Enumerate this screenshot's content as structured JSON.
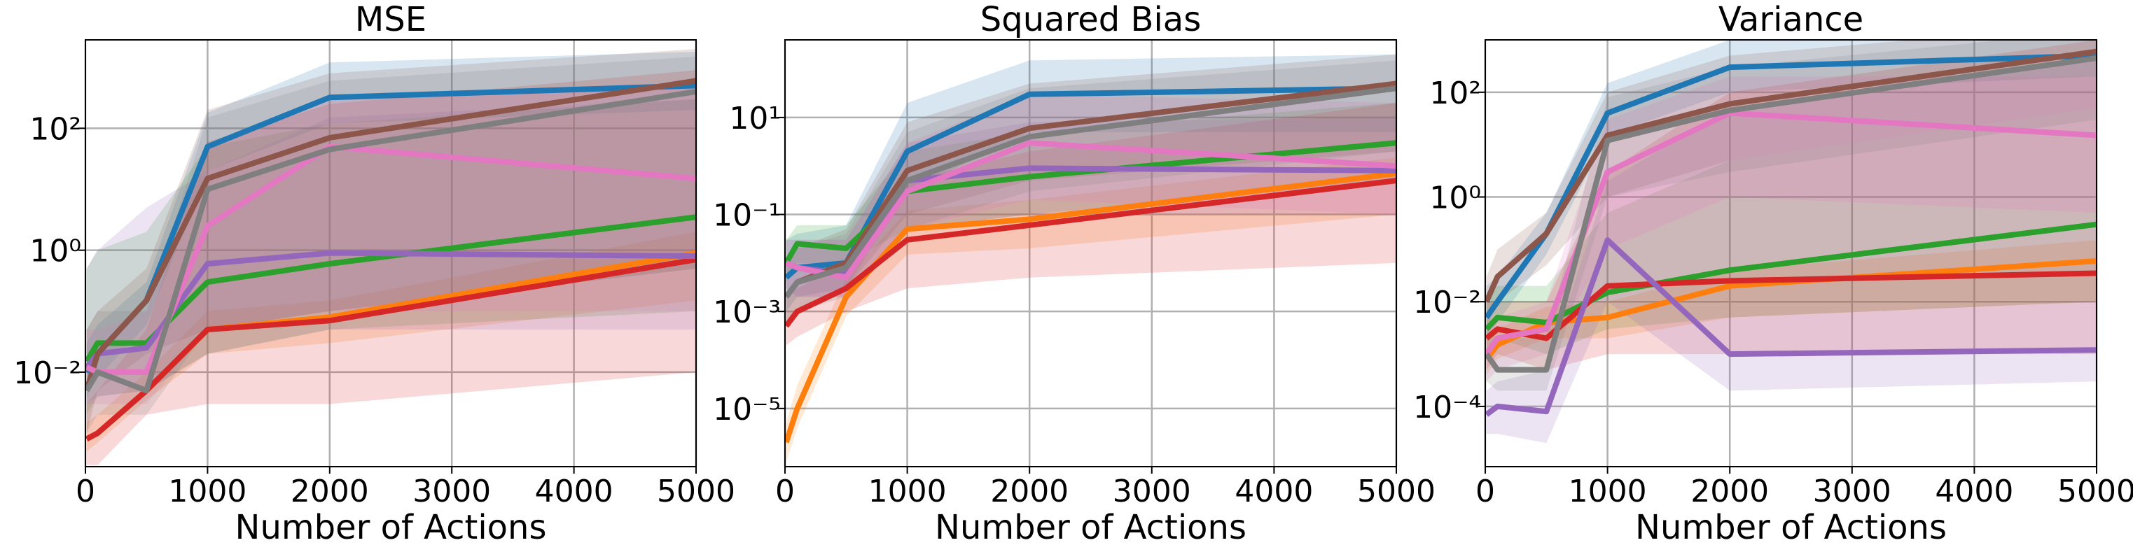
{
  "chart_data": [
    {
      "type": "line",
      "title": "MSE",
      "xlabel": "Number of Actions",
      "ylabel": "",
      "x": [
        10,
        100,
        500,
        1000,
        2000,
        5000
      ],
      "xlim": [
        0,
        5000
      ],
      "xticks": [
        0,
        1000,
        2000,
        3000,
        4000,
        5000
      ],
      "ylog": true,
      "ylim_log10": [
        -3.55,
        3.45
      ],
      "yticks_log10": [
        -2,
        0,
        2
      ],
      "grid": true,
      "series": [
        {
          "color": "#1f77b4",
          "values": [
            0.01,
            0.02,
            0.15,
            50,
            320,
            500
          ],
          "band_low": [
            0.004,
            0.008,
            0.06,
            20,
            120,
            200
          ],
          "band_high": [
            0.03,
            0.06,
            0.3,
            180,
            1200,
            1800
          ]
        },
        {
          "color": "#ff7f0e",
          "values": [
            0.0008,
            0.001,
            0.005,
            0.05,
            0.08,
            0.9
          ],
          "band_low": [
            0.0005,
            0.0007,
            0.0035,
            0.02,
            0.03,
            0.15
          ],
          "band_high": [
            0.0015,
            0.002,
            0.01,
            0.1,
            0.15,
            2.0
          ]
        },
        {
          "color": "#2ca02c",
          "values": [
            0.015,
            0.03,
            0.03,
            0.3,
            0.6,
            3.5
          ],
          "band_low": [
            0.002,
            0.004,
            0.005,
            0.02,
            0.05,
            0.1
          ],
          "band_high": [
            0.5,
            1,
            2,
            50,
            120,
            300
          ]
        },
        {
          "color": "#d62728",
          "values": [
            0.0008,
            0.001,
            0.005,
            0.05,
            0.07,
            0.7
          ],
          "band_low": [
            0.0003,
            0.0003,
            0.002,
            0.003,
            0.003,
            0.01
          ],
          "band_high": [
            0.003,
            0.005,
            0.05,
            60,
            250,
            900
          ]
        },
        {
          "color": "#9467bd",
          "values": [
            0.012,
            0.02,
            0.025,
            0.6,
            0.9,
            0.8
          ],
          "band_low": [
            0.003,
            0.004,
            0.005,
            0.02,
            0.05,
            0.05
          ],
          "band_high": [
            0.5,
            1,
            5,
            20,
            150,
            300
          ]
        },
        {
          "color": "#8c564b",
          "values": [
            0.005,
            0.02,
            0.15,
            15,
            70,
            600
          ],
          "band_low": [
            0.001,
            0.005,
            0.02,
            0.05,
            0.1,
            0.5
          ],
          "band_high": [
            0.05,
            0.1,
            0.5,
            200,
            800,
            2000
          ]
        },
        {
          "color": "#e377c2",
          "values": [
            0.012,
            0.01,
            0.01,
            2.5,
            50,
            15
          ],
          "band_low": [
            0.003,
            0.003,
            0.003,
            0.05,
            0.1,
            0.1
          ],
          "band_high": [
            0.05,
            0.05,
            0.1,
            50,
            300,
            500
          ]
        },
        {
          "color": "#7f7f7f",
          "values": [
            0.005,
            0.01,
            0.005,
            10,
            45,
            400
          ],
          "band_low": [
            0.001,
            0.002,
            0.002,
            0.05,
            0.1,
            0.5
          ],
          "band_high": [
            0.05,
            0.1,
            0.1,
            150,
            600,
            1500
          ]
        }
      ]
    },
    {
      "type": "line",
      "title": "Squared Bias",
      "xlabel": "Number of Actions",
      "ylabel": "",
      "x": [
        10,
        100,
        500,
        1000,
        2000,
        5000
      ],
      "xlim": [
        0,
        5000
      ],
      "xticks": [
        0,
        1000,
        2000,
        3000,
        4000,
        5000
      ],
      "ylog": true,
      "ylim_log10": [
        -6.2,
        2.6
      ],
      "yticks_log10": [
        -5,
        -3,
        -1,
        1
      ],
      "grid": true,
      "series": [
        {
          "color": "#1f77b4",
          "values": [
            0.005,
            0.008,
            0.01,
            2,
            30,
            40
          ],
          "band_low": [
            0.001,
            0.002,
            0.003,
            0.3,
            5,
            5
          ],
          "band_high": [
            0.03,
            0.04,
            0.06,
            20,
            150,
            200
          ]
        },
        {
          "color": "#ff7f0e",
          "values": [
            2e-06,
            1e-05,
            0.002,
            0.05,
            0.08,
            0.7
          ],
          "band_low": [
            8e-07,
            4e-06,
            0.0008,
            0.015,
            0.02,
            0.1
          ],
          "band_high": [
            5e-06,
            3e-05,
            0.005,
            0.12,
            0.2,
            1.5
          ]
        },
        {
          "color": "#2ca02c",
          "values": [
            0.01,
            0.025,
            0.02,
            0.3,
            0.6,
            3
          ],
          "band_low": [
            0.004,
            0.01,
            0.01,
            0.05,
            0.1,
            0.5
          ],
          "band_high": [
            0.03,
            0.06,
            0.06,
            2,
            5,
            20
          ]
        },
        {
          "color": "#d62728",
          "values": [
            0.0005,
            0.001,
            0.003,
            0.03,
            0.06,
            0.5
          ],
          "band_low": [
            0.0002,
            0.0003,
            0.001,
            0.003,
            0.005,
            0.01
          ],
          "band_high": [
            0.002,
            0.003,
            0.01,
            0.5,
            2,
            20
          ]
        },
        {
          "color": "#9467bd",
          "values": [
            0.01,
            0.008,
            0.006,
            0.5,
            0.9,
            0.8
          ],
          "band_low": [
            0.003,
            0.002,
            0.002,
            0.05,
            0.1,
            0.1
          ],
          "band_high": [
            0.03,
            0.03,
            0.03,
            3,
            8,
            10
          ]
        },
        {
          "color": "#8c564b",
          "values": [
            0.002,
            0.004,
            0.01,
            0.8,
            6,
            50
          ],
          "band_low": [
            0.0005,
            0.001,
            0.003,
            0.1,
            0.5,
            2
          ],
          "band_high": [
            0.01,
            0.02,
            0.05,
            8,
            50,
            200
          ]
        },
        {
          "color": "#e377c2",
          "values": [
            0.01,
            0.008,
            0.005,
            0.3,
            3,
            1
          ],
          "band_low": [
            0.003,
            0.002,
            0.002,
            0.05,
            0.2,
            0.1
          ],
          "band_high": [
            0.03,
            0.03,
            0.03,
            3,
            30,
            20
          ]
        },
        {
          "color": "#7f7f7f",
          "values": [
            0.002,
            0.004,
            0.008,
            0.5,
            4,
            40
          ],
          "band_low": [
            0.0005,
            0.001,
            0.002,
            0.05,
            0.3,
            2
          ],
          "band_high": [
            0.01,
            0.02,
            0.04,
            5,
            40,
            150
          ]
        }
      ]
    },
    {
      "type": "line",
      "title": "Variance",
      "xlabel": "Number of Actions",
      "ylabel": "",
      "x": [
        10,
        100,
        500,
        1000,
        2000,
        5000
      ],
      "xlim": [
        0,
        5000
      ],
      "xticks": [
        0,
        1000,
        2000,
        3000,
        4000,
        5000
      ],
      "ylog": true,
      "ylim_log10": [
        -5.15,
        3.0
      ],
      "yticks_log10": [
        -4,
        -2,
        0,
        2
      ],
      "grid": true,
      "series": [
        {
          "color": "#1f77b4",
          "values": [
            0.005,
            0.01,
            0.2,
            40,
            300,
            500
          ],
          "band_low": [
            0.002,
            0.004,
            0.08,
            15,
            100,
            200
          ],
          "band_high": [
            0.02,
            0.03,
            0.5,
            150,
            1000,
            1500
          ]
        },
        {
          "color": "#ff7f0e",
          "values": [
            0.0008,
            0.0015,
            0.004,
            0.005,
            0.02,
            0.06
          ],
          "band_low": [
            0.0004,
            0.0008,
            0.002,
            0.002,
            0.005,
            0.01
          ],
          "band_high": [
            0.002,
            0.003,
            0.008,
            0.01,
            0.04,
            0.15
          ]
        },
        {
          "color": "#2ca02c",
          "values": [
            0.003,
            0.005,
            0.004,
            0.015,
            0.04,
            0.3
          ],
          "band_low": [
            0.001,
            0.002,
            0.001,
            0.003,
            0.005,
            0.01
          ],
          "band_high": [
            0.01,
            0.02,
            0.02,
            0.5,
            5,
            50
          ]
        },
        {
          "color": "#d62728",
          "values": [
            0.002,
            0.003,
            0.002,
            0.02,
            0.025,
            0.035
          ],
          "band_low": [
            0.0005,
            0.001,
            0.0005,
            0.001,
            0.001,
            0.001
          ],
          "band_high": [
            0.01,
            0.01,
            0.01,
            3,
            100,
            1000
          ]
        },
        {
          "color": "#9467bd",
          "values": [
            7e-05,
            0.0001,
            8e-05,
            0.15,
            0.001,
            0.0012
          ],
          "band_low": [
            3e-05,
            3e-05,
            2e-05,
            0.01,
            0.0002,
            0.0003
          ],
          "band_high": [
            0.0002,
            0.0003,
            0.0005,
            2,
            50,
            500
          ]
        },
        {
          "color": "#8c564b",
          "values": [
            0.01,
            0.03,
            0.2,
            15,
            60,
            600
          ],
          "band_low": [
            0.003,
            0.01,
            0.05,
            1,
            5,
            50
          ],
          "band_high": [
            0.03,
            0.1,
            0.5,
            100,
            500,
            2000
          ]
        },
        {
          "color": "#e377c2",
          "values": [
            0.001,
            0.002,
            0.003,
            3,
            40,
            15
          ],
          "band_low": [
            0.0003,
            0.0005,
            0.001,
            0.1,
            1,
            0.5
          ],
          "band_high": [
            0.003,
            0.005,
            0.01,
            30,
            200,
            200
          ]
        },
        {
          "color": "#7f7f7f",
          "values": [
            0.001,
            0.0005,
            0.0005,
            12,
            45,
            450
          ],
          "band_low": [
            0.0003,
            0.0002,
            0.0002,
            1,
            3,
            30
          ],
          "band_high": [
            0.003,
            0.002,
            0.002,
            80,
            300,
            1500
          ]
        }
      ]
    }
  ]
}
